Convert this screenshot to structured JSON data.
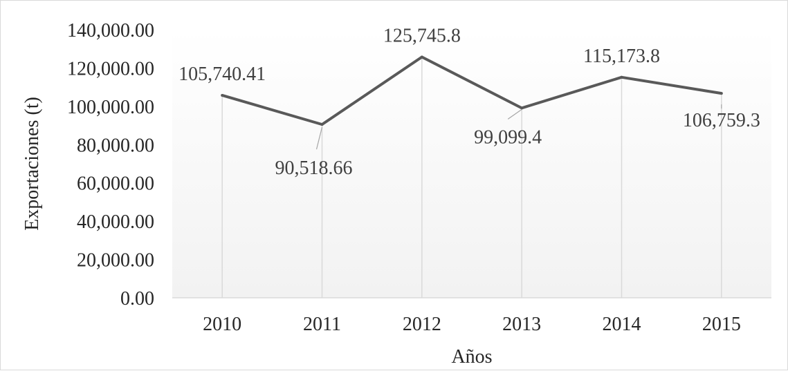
{
  "chart_data": {
    "type": "line",
    "title": "",
    "xlabel": "Años",
    "ylabel": "Exportaciones (t)",
    "categories": [
      "2010",
      "2011",
      "2012",
      "2013",
      "2014",
      "2015"
    ],
    "series": [
      {
        "name": "",
        "values": [
          105740.41,
          90518.66,
          125745.8,
          99099.4,
          115173.8,
          106759.3
        ],
        "labels": [
          "105,740.41",
          "90,518.66",
          "125,745.8",
          "99,099.4",
          "115,173.8",
          "106,759.3"
        ]
      }
    ],
    "ylim": [
      0,
      140000
    ],
    "y_ticks": [
      "0.00",
      "20,000.00",
      "40,000.00",
      "60,000.00",
      "80,000.00",
      "100,000.00",
      "120,000.00",
      "140,000.00"
    ],
    "grid": false,
    "drop_lines": true,
    "legend": "none",
    "colors": {
      "line": "#595959",
      "drop_line": "#d9d9d9",
      "axis": "#d9d9d9",
      "plot_gradient_bottom": "#f2f2f2"
    }
  }
}
